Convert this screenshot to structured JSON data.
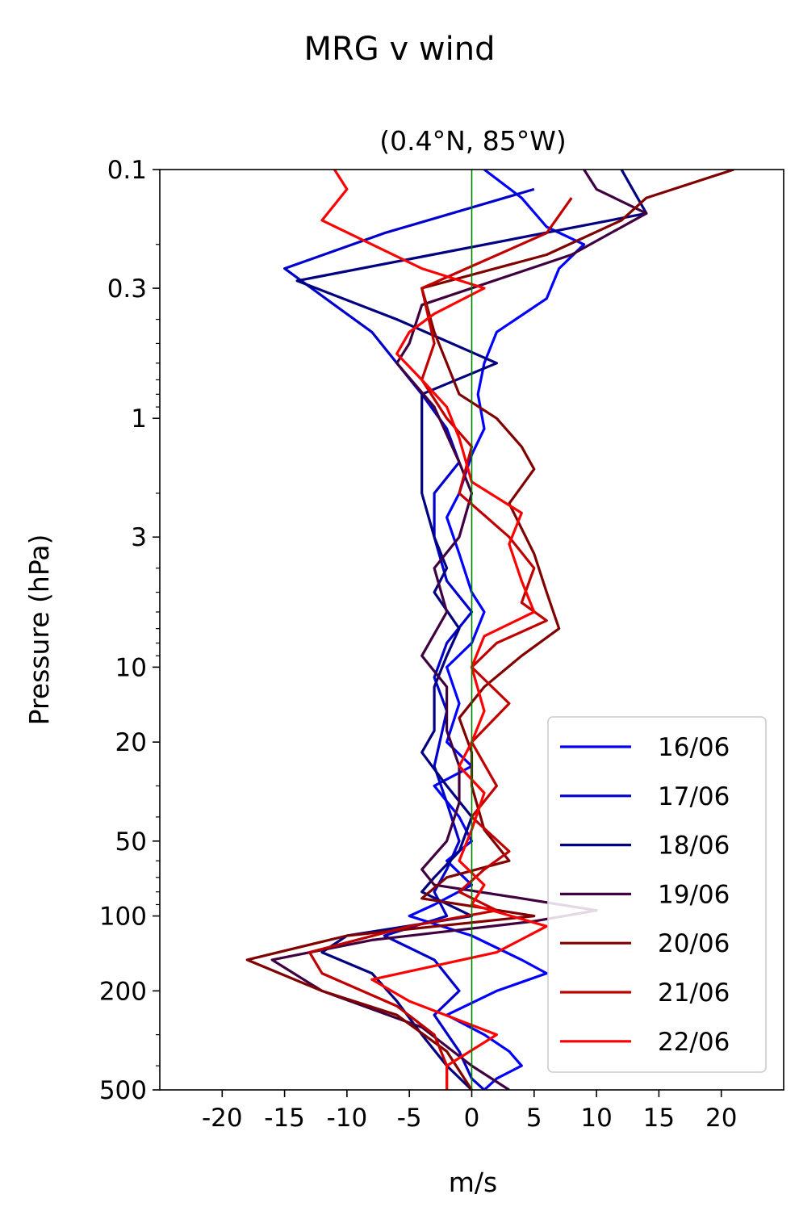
{
  "chart_data": {
    "type": "line",
    "title": "MRG v wind",
    "subtitle": "(0.4°N, 85°W)",
    "xlabel": "m/s",
    "ylabel": "Pressure (hPa)",
    "xlim": [
      -25,
      25
    ],
    "ylim": [
      500,
      0.1
    ],
    "yscale": "log",
    "y_inverted": true,
    "xticks": [
      -20,
      -15,
      -10,
      -5,
      0,
      5,
      10,
      15,
      20
    ],
    "xtick_labels": [
      "-20",
      "-15",
      "-10",
      "-5",
      "0",
      "5",
      "10",
      "15",
      "20"
    ],
    "yticks": [
      0.1,
      0.3,
      1,
      3,
      10,
      20,
      50,
      100,
      200,
      500
    ],
    "ytick_labels": [
      "0.1",
      "0.3",
      "1",
      "3",
      "10",
      "20",
      "50",
      "100",
      "200",
      "500"
    ],
    "zero_line_color": "#008000",
    "legend_position": "lower-right",
    "series": [
      {
        "name": "16/06",
        "color": "#0000ff",
        "points": [
          [
            1,
            0.1
          ],
          [
            4,
            0.13
          ],
          [
            6,
            0.17
          ],
          [
            9,
            0.2
          ],
          [
            7,
            0.25
          ],
          [
            6,
            0.33
          ],
          [
            2,
            0.45
          ],
          [
            1,
            0.6
          ],
          [
            0.5,
            0.8
          ],
          [
            1,
            1.1
          ],
          [
            0,
            1.4
          ],
          [
            -1,
            2
          ],
          [
            -2,
            2.5
          ],
          [
            -1,
            3.5
          ],
          [
            0,
            5
          ],
          [
            1,
            6
          ],
          [
            0,
            8
          ],
          [
            -2,
            10
          ],
          [
            -1,
            14
          ],
          [
            -2,
            20
          ],
          [
            0,
            25
          ],
          [
            -3,
            30
          ],
          [
            -1,
            40
          ],
          [
            0,
            50
          ],
          [
            -2,
            60
          ],
          [
            0,
            75
          ],
          [
            -3,
            90
          ],
          [
            -5,
            100
          ],
          [
            0,
            120
          ],
          [
            4,
            150
          ],
          [
            6,
            170
          ],
          [
            2,
            200
          ],
          [
            -2,
            250
          ],
          [
            1,
            300
          ],
          [
            3,
            350
          ],
          [
            4,
            400
          ],
          [
            2,
            450
          ],
          [
            1,
            500
          ]
        ]
      },
      {
        "name": "17/06",
        "color": "#0000cc",
        "points": [
          [
            5,
            0.12
          ],
          [
            -7,
            0.18
          ],
          [
            -15,
            0.25
          ],
          [
            -11,
            0.35
          ],
          [
            -8,
            0.45
          ],
          [
            -6,
            0.6
          ],
          [
            -4,
            0.8
          ],
          [
            -2,
            1.1
          ],
          [
            -1,
            1.5
          ],
          [
            -3,
            2
          ],
          [
            -3,
            3
          ],
          [
            -2,
            4.5
          ],
          [
            0,
            6
          ],
          [
            -2,
            8
          ],
          [
            -3,
            11
          ],
          [
            -2,
            15
          ],
          [
            -3,
            25
          ],
          [
            -2,
            35
          ],
          [
            -1,
            50
          ],
          [
            -2,
            65
          ],
          [
            -3,
            80
          ],
          [
            -2,
            100
          ],
          [
            -7,
            120
          ],
          [
            -3,
            150
          ],
          [
            -1,
            200
          ],
          [
            -3,
            250
          ],
          [
            -1,
            350
          ],
          [
            0,
            450
          ],
          [
            1,
            500
          ]
        ]
      },
      {
        "name": "18/06",
        "color": "#000080",
        "points": [
          [
            12,
            0.1
          ],
          [
            14,
            0.15
          ],
          [
            -14,
            0.28
          ],
          [
            -6,
            0.4
          ],
          [
            2,
            0.6
          ],
          [
            -4,
            0.8
          ],
          [
            -4,
            1.2
          ],
          [
            -4,
            2
          ],
          [
            -3,
            3
          ],
          [
            -2,
            4
          ],
          [
            -3,
            5
          ],
          [
            -1,
            7
          ],
          [
            -2,
            9
          ],
          [
            -3,
            12
          ],
          [
            -3,
            18
          ],
          [
            -4,
            22
          ],
          [
            -2,
            30
          ],
          [
            0,
            40
          ],
          [
            -1,
            55
          ],
          [
            -3,
            70
          ],
          [
            -4,
            80
          ],
          [
            0,
            100
          ],
          [
            -10,
            120
          ],
          [
            -12,
            140
          ],
          [
            -8,
            170
          ],
          [
            -6,
            220
          ],
          [
            -4,
            300
          ],
          [
            -2,
            400
          ],
          [
            0,
            500
          ]
        ]
      },
      {
        "name": "19/06",
        "color": "#400040",
        "points": [
          [
            9,
            0.1
          ],
          [
            10,
            0.12
          ],
          [
            14,
            0.15
          ],
          [
            8,
            0.22
          ],
          [
            -4,
            0.35
          ],
          [
            -5,
            0.5
          ],
          [
            -6,
            0.6
          ],
          [
            -3,
            0.9
          ],
          [
            -1,
            1.5
          ],
          [
            0,
            2
          ],
          [
            -1,
            3
          ],
          [
            -3,
            4
          ],
          [
            -2,
            6
          ],
          [
            -4,
            9
          ],
          [
            -2,
            12
          ],
          [
            -2,
            18
          ],
          [
            -1,
            25
          ],
          [
            -1,
            35
          ],
          [
            -2,
            50
          ],
          [
            -4,
            65
          ],
          [
            -3,
            75
          ],
          [
            4,
            85
          ],
          [
            10,
            95
          ],
          [
            5,
            105
          ],
          [
            -8,
            125
          ],
          [
            -16,
            150
          ],
          [
            -12,
            200
          ],
          [
            -4,
            280
          ],
          [
            0,
            400
          ],
          [
            3,
            500
          ]
        ]
      },
      {
        "name": "20/06",
        "color": "#800000",
        "points": [
          [
            21,
            0.1
          ],
          [
            14,
            0.13
          ],
          [
            12,
            0.16
          ],
          [
            6,
            0.22
          ],
          [
            -4,
            0.3
          ],
          [
            -3,
            0.45
          ],
          [
            -2,
            0.6
          ],
          [
            -1,
            0.8
          ],
          [
            2,
            1
          ],
          [
            4,
            1.3
          ],
          [
            5,
            1.6
          ],
          [
            3,
            2.2
          ],
          [
            5,
            3.5
          ],
          [
            6,
            5
          ],
          [
            7,
            7
          ],
          [
            4,
            9
          ],
          [
            1,
            12
          ],
          [
            -1,
            16
          ],
          [
            0,
            22
          ],
          [
            0,
            30
          ],
          [
            1,
            45
          ],
          [
            3,
            60
          ],
          [
            -2,
            70
          ],
          [
            -4,
            85
          ],
          [
            5,
            100
          ],
          [
            -10,
            120
          ],
          [
            -18,
            150
          ],
          [
            -12,
            200
          ],
          [
            -6,
            250
          ],
          [
            -2,
            350
          ],
          [
            0,
            500
          ]
        ]
      },
      {
        "name": "21/06",
        "color": "#c00000",
        "points": [
          [
            8,
            0.13
          ],
          [
            6,
            0.18
          ],
          [
            -4,
            0.3
          ],
          [
            -3,
            0.5
          ],
          [
            -4,
            0.7
          ],
          [
            -2,
            1
          ],
          [
            0,
            1.3
          ],
          [
            -1,
            2
          ],
          [
            3,
            3
          ],
          [
            5,
            4
          ],
          [
            4,
            5.5
          ],
          [
            6,
            6.5
          ],
          [
            2,
            8
          ],
          [
            0,
            10
          ],
          [
            3,
            14
          ],
          [
            0,
            20
          ],
          [
            2,
            30
          ],
          [
            0,
            40
          ],
          [
            3,
            55
          ],
          [
            1,
            65
          ],
          [
            -1,
            80
          ],
          [
            2,
            95
          ],
          [
            -5,
            110
          ],
          [
            -13,
            140
          ],
          [
            -12,
            170
          ],
          [
            -6,
            230
          ],
          [
            -3,
            300
          ],
          [
            -2,
            400
          ],
          [
            -2,
            500
          ]
        ]
      },
      {
        "name": "22/06",
        "color": "#ff0000",
        "points": [
          [
            -11,
            0.1
          ],
          [
            -10,
            0.12
          ],
          [
            -12,
            0.16
          ],
          [
            -4,
            0.25
          ],
          [
            1,
            0.3
          ],
          [
            -3,
            0.38
          ],
          [
            -5,
            0.45
          ],
          [
            -6,
            0.55
          ],
          [
            -4,
            0.7
          ],
          [
            -2,
            0.9
          ],
          [
            -1,
            1.2
          ],
          [
            0,
            1.8
          ],
          [
            4,
            2.4
          ],
          [
            3,
            3.2
          ],
          [
            4,
            4.5
          ],
          [
            5,
            6
          ],
          [
            1,
            7.5
          ],
          [
            0,
            10
          ],
          [
            1,
            15
          ],
          [
            0,
            20
          ],
          [
            -1,
            25
          ],
          [
            1,
            32
          ],
          [
            0,
            45
          ],
          [
            -1,
            60
          ],
          [
            1,
            75
          ],
          [
            0,
            90
          ],
          [
            6,
            110
          ],
          [
            2,
            140
          ],
          [
            -8,
            180
          ],
          [
            -5,
            220
          ],
          [
            2,
            300
          ],
          [
            -2,
            400
          ],
          [
            -2,
            500
          ]
        ]
      }
    ]
  }
}
